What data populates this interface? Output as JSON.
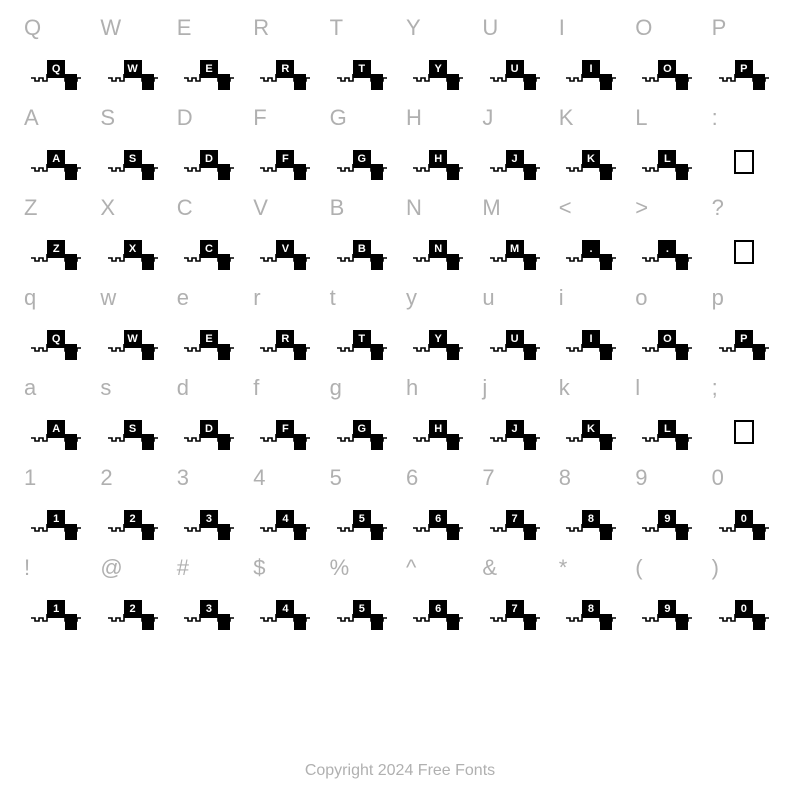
{
  "background_color": "#ffffff",
  "label_color": "#b0b0b0",
  "glyph_bg_color": "#000000",
  "glyph_text_color": "#ffffff",
  "label_fontsize": 22,
  "glyph_fontsize": 11,
  "copyright": "Copyright 2024 Free Fonts",
  "rows": [
    {
      "labels": [
        "Q",
        "W",
        "E",
        "R",
        "T",
        "Y",
        "U",
        "I",
        "O",
        "P"
      ],
      "glyphs": [
        "Q",
        "W",
        "E",
        "R",
        "T",
        "Y",
        "U",
        "I",
        "O",
        "P"
      ],
      "empty": []
    },
    {
      "labels": [
        "A",
        "S",
        "D",
        "F",
        "G",
        "H",
        "J",
        "K",
        "L",
        ":"
      ],
      "glyphs": [
        "A",
        "S",
        "D",
        "F",
        "G",
        "H",
        "J",
        "K",
        "L",
        ""
      ],
      "empty": [
        9
      ]
    },
    {
      "labels": [
        "Z",
        "X",
        "C",
        "V",
        "B",
        "N",
        "M",
        "<",
        ">",
        "?"
      ],
      "glyphs": [
        "Z",
        "X",
        "C",
        "V",
        "B",
        "N",
        "M",
        ".",
        ".",
        ""
      ],
      "empty": [
        9
      ]
    },
    {
      "labels": [
        "q",
        "w",
        "e",
        "r",
        "t",
        "y",
        "u",
        "i",
        "o",
        "p"
      ],
      "glyphs": [
        "Q",
        "W",
        "E",
        "R",
        "T",
        "Y",
        "U",
        "I",
        "O",
        "P"
      ],
      "empty": []
    },
    {
      "labels": [
        "a",
        "s",
        "d",
        "f",
        "g",
        "h",
        "j",
        "k",
        "l",
        ";"
      ],
      "glyphs": [
        "A",
        "S",
        "D",
        "F",
        "G",
        "H",
        "J",
        "K",
        "L",
        ""
      ],
      "empty": [
        9
      ]
    },
    {
      "labels": [
        "1",
        "2",
        "3",
        "4",
        "5",
        "6",
        "7",
        "8",
        "9",
        "0"
      ],
      "glyphs": [
        "1",
        "2",
        "3",
        "4",
        "5",
        "6",
        "7",
        "8",
        "9",
        "0"
      ],
      "empty": []
    },
    {
      "labels": [
        "!",
        "@",
        "#",
        "$",
        "%",
        "^",
        "&",
        "*",
        "(",
        ")"
      ],
      "glyphs": [
        "1",
        "2",
        "3",
        "4",
        "5",
        "6",
        "7",
        "8",
        "9",
        "0"
      ],
      "empty": []
    }
  ]
}
